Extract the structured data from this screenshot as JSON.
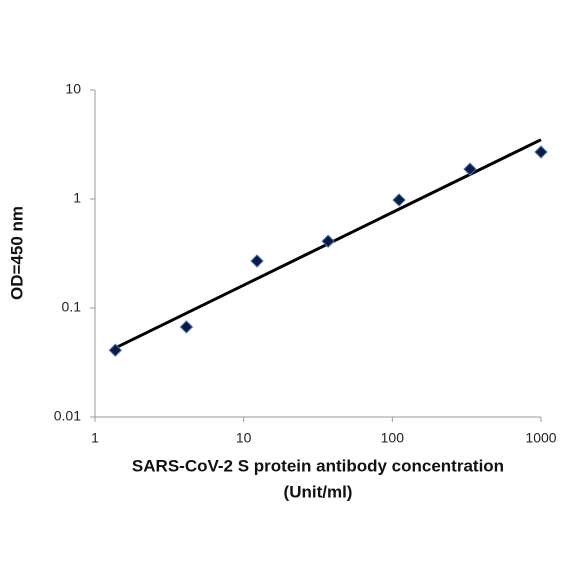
{
  "chart_data": {
    "type": "scatter",
    "xlabel": [
      "SARS-CoV-2 S protein antibody concentration",
      "(Unit/ml)"
    ],
    "ylabel": "OD=450 nm",
    "log_x": true,
    "log_y": true,
    "x": [
      1.37,
      4.12,
      12.3,
      37,
      111,
      333,
      1000
    ],
    "values": [
      0.041,
      0.067,
      0.27,
      0.41,
      0.98,
      1.88,
      2.7
    ],
    "color": "#0d1b3e",
    "edge_color": "#4a78c8",
    "trendline": {
      "x": [
        1.37,
        1000
      ],
      "values": [
        0.043,
        3.5
      ],
      "color": "#000000"
    },
    "xlim": [
      1,
      1000
    ],
    "ylim": [
      0.01,
      10
    ],
    "xticks": [
      1,
      10,
      100,
      1000
    ],
    "yticks": [
      0.01,
      0.1,
      1,
      10
    ]
  }
}
